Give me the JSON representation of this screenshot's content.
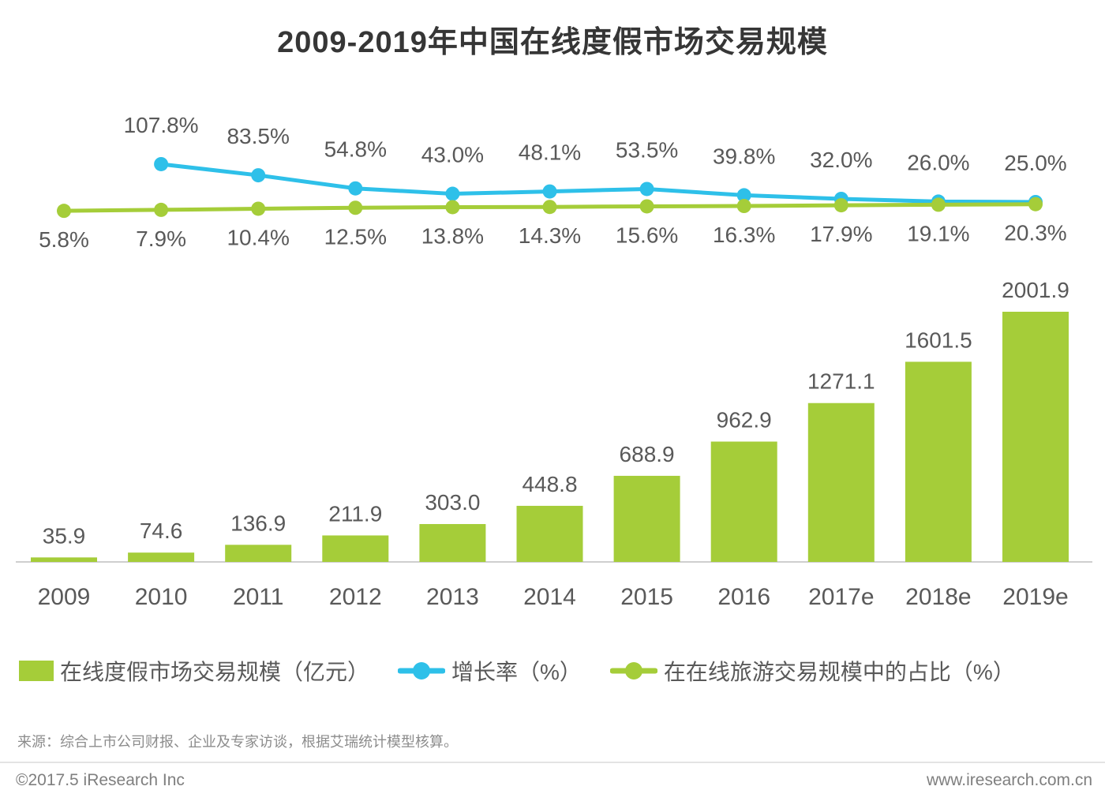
{
  "title": "2009-2019年中国在线度假市场交易规模",
  "chart_data": {
    "type": "bar",
    "title": "2009-2019年中国在线度假市场交易规模",
    "categories": [
      "2009",
      "2010",
      "2011",
      "2012",
      "2013",
      "2014",
      "2015",
      "2016",
      "2017e",
      "2018e",
      "2019e"
    ],
    "series": [
      {
        "name": "在线度假市场交易规模（亿元）",
        "type": "bar",
        "color": "#a5cd39",
        "values": [
          35.9,
          74.6,
          136.9,
          211.9,
          303.0,
          448.8,
          688.9,
          962.9,
          1271.1,
          1601.5,
          2001.9
        ],
        "labels": [
          "35.9",
          "74.6",
          "136.9",
          "211.9",
          "303.0",
          "448.8",
          "688.9",
          "962.9",
          "1271.1",
          "1601.5",
          "2001.9"
        ]
      },
      {
        "name": "增长率（%）",
        "type": "line",
        "color": "#2ec0e9",
        "values": [
          null,
          107.8,
          83.5,
          54.8,
          43.0,
          48.1,
          53.5,
          39.8,
          32.0,
          26.0,
          25.0
        ],
        "labels": [
          "",
          "107.8%",
          "83.5%",
          "54.8%",
          "43.0%",
          "48.1%",
          "53.5%",
          "39.8%",
          "32.0%",
          "26.0%",
          "25.0%"
        ]
      },
      {
        "name": "在在线旅游交易规模中的占比（%）",
        "type": "line",
        "color": "#a5cd39",
        "values": [
          5.8,
          7.9,
          10.4,
          12.5,
          13.8,
          14.3,
          15.6,
          16.3,
          17.9,
          19.1,
          20.3
        ],
        "labels": [
          "5.8%",
          "7.9%",
          "10.4%",
          "12.5%",
          "13.8%",
          "14.3%",
          "15.6%",
          "16.3%",
          "17.9%",
          "19.1%",
          "20.3%"
        ]
      }
    ],
    "xlabel": "",
    "ylabel": "",
    "grid": false,
    "y_axis_visible": false,
    "legend_position": "bottom"
  },
  "legend": {
    "items": [
      {
        "label": "在线度假市场交易规模（亿元）",
        "swatch": "bar-swatch",
        "color": "#a5cd39"
      },
      {
        "label": "增长率（%）",
        "swatch": "line-dot-swatch",
        "color": "#2ec0e9"
      },
      {
        "label": "在在线旅游交易规模中的占比（%）",
        "swatch": "line-dot-swatch",
        "color": "#a5cd39"
      }
    ]
  },
  "source_note": "来源：综合上市公司财报、企业及专家访谈，根据艾瑞统计模型核算。",
  "footer": {
    "left": "©2017.5 iResearch Inc",
    "right": "www.iresearch.com.cn"
  },
  "colors": {
    "bar": "#a5cd39",
    "growth_line": "#2ec0e9",
    "share_line": "#a5cd39",
    "label": "#595959",
    "title": "#363636",
    "axis": "#cfcfcf"
  }
}
